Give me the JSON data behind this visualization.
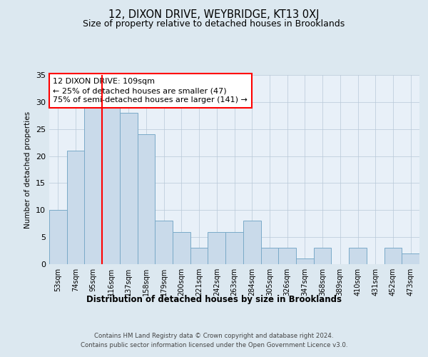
{
  "title": "12, DIXON DRIVE, WEYBRIDGE, KT13 0XJ",
  "subtitle": "Size of property relative to detached houses in Brooklands",
  "xlabel": "Distribution of detached houses by size in Brooklands",
  "ylabel": "Number of detached properties",
  "categories": [
    "53sqm",
    "74sqm",
    "95sqm",
    "116sqm",
    "137sqm",
    "158sqm",
    "179sqm",
    "200sqm",
    "221sqm",
    "242sqm",
    "263sqm",
    "284sqm",
    "305sqm",
    "326sqm",
    "347sqm",
    "368sqm",
    "389sqm",
    "410sqm",
    "431sqm",
    "452sqm",
    "473sqm"
  ],
  "values": [
    10,
    21,
    29,
    29,
    28,
    24,
    8,
    6,
    3,
    6,
    6,
    8,
    3,
    3,
    1,
    3,
    0,
    3,
    0,
    3,
    2
  ],
  "bar_color": "#c9daea",
  "bar_edgecolor": "#7aaac8",
  "redline_color": "red",
  "redline_x": 2.5,
  "annotation_text": "12 DIXON DRIVE: 109sqm\n← 25% of detached houses are smaller (47)\n75% of semi-detached houses are larger (141) →",
  "ylim": [
    0,
    35
  ],
  "yticks": [
    0,
    5,
    10,
    15,
    20,
    25,
    30,
    35
  ],
  "footer1": "Contains HM Land Registry data © Crown copyright and database right 2024.",
  "footer2": "Contains public sector information licensed under the Open Government Licence v3.0.",
  "bg_color": "#dce8f0",
  "plot_bg_color": "#e8f0f8",
  "grid_color": "#b8c8d8"
}
